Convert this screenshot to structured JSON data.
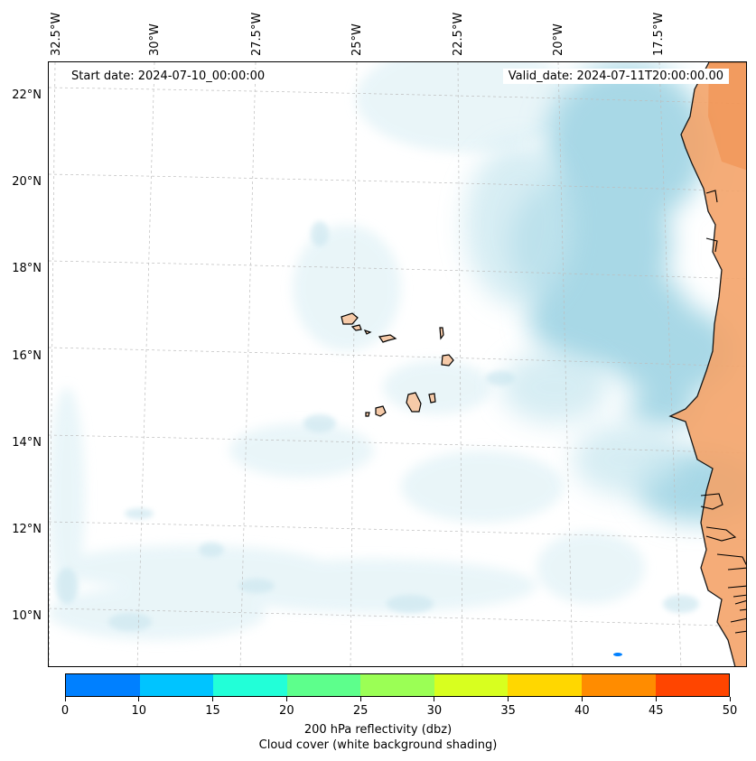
{
  "header": {
    "start_date": "Start date: 2024-07-10_00:00:00",
    "valid_date": "Valid_date: 2024-07-11T20:00:00.00"
  },
  "lon_labels": [
    "32.5°W",
    "30°W",
    "27.5°W",
    "25°W",
    "22.5°W",
    "20°W",
    "17.5°W"
  ],
  "lat_labels": [
    "22°N",
    "20°N",
    "18°N",
    "16°N",
    "14°N",
    "12°N",
    "10°N"
  ],
  "colorbar": {
    "ticks": [
      "0",
      "10",
      "15",
      "20",
      "25",
      "30",
      "35",
      "40",
      "45",
      "50"
    ],
    "colors": [
      "#0080ff",
      "#00c4ff",
      "#22ffd8",
      "#5dff8c",
      "#9bff55",
      "#d8ff1f",
      "#ffd700",
      "#ff8c00",
      "#ff4500"
    ],
    "label_line1": "200 hPa reflectivity (dbz)",
    "label_line2": "Cloud cover (white background shading)"
  },
  "colors": {
    "land": "#f4a46a",
    "cloud": "#a8d8e6",
    "coast": "#000000"
  }
}
